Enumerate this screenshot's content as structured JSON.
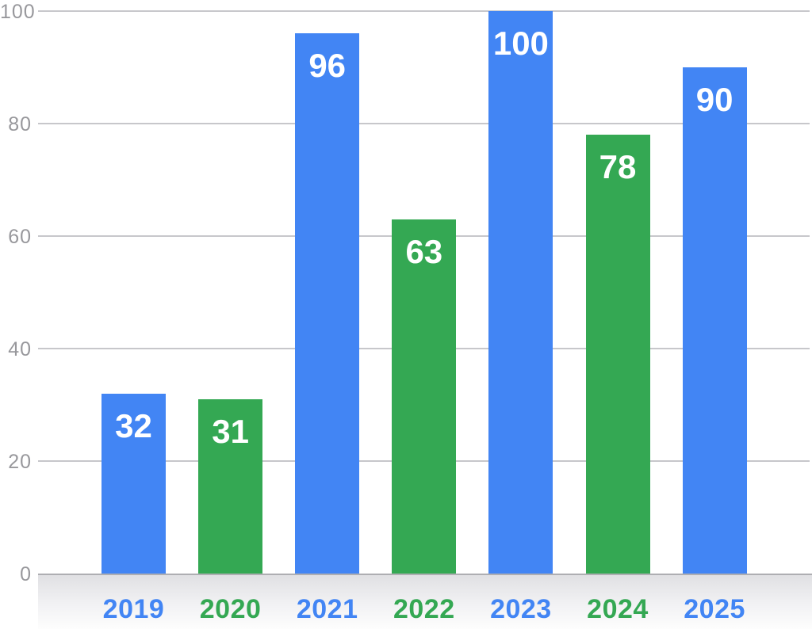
{
  "chart_data": {
    "type": "bar",
    "title": "",
    "xlabel": "",
    "ylabel": "",
    "categories": [
      "2019",
      "2020",
      "2021",
      "2022",
      "2023",
      "2024",
      "2025"
    ],
    "values": [
      32,
      31,
      96,
      63,
      100,
      78,
      90
    ],
    "value_labels": [
      "32",
      "31",
      "96",
      "63",
      "100",
      "78",
      "90"
    ],
    "bar_colors": [
      "#4285F4",
      "#34A853",
      "#4285F4",
      "#34A853",
      "#4285F4",
      "#34A853",
      "#4285F4"
    ],
    "category_label_colors": [
      "#4285F4",
      "#34A853",
      "#4285F4",
      "#34A853",
      "#4285F4",
      "#34A853",
      "#4285F4"
    ],
    "ylim": [
      0,
      100
    ],
    "yticks": [
      0,
      20,
      40,
      60,
      80,
      100
    ],
    "ytick_labels": [
      "0",
      "20",
      "40",
      "60",
      "80",
      "100"
    ],
    "grid": true,
    "legend": false,
    "value_label_position": "inside-top",
    "value_label_color": "#FFFFFF"
  },
  "colors": {
    "bar_blue": "#4285F4",
    "bar_green": "#34A853",
    "gridline": "#C7C7CB",
    "axis_line": "#AEAEB2",
    "ytick_text": "#98989C",
    "band_top": "#E0E0E3",
    "band_bottom": "#FDFDFD",
    "background": "#FFFFFF"
  }
}
